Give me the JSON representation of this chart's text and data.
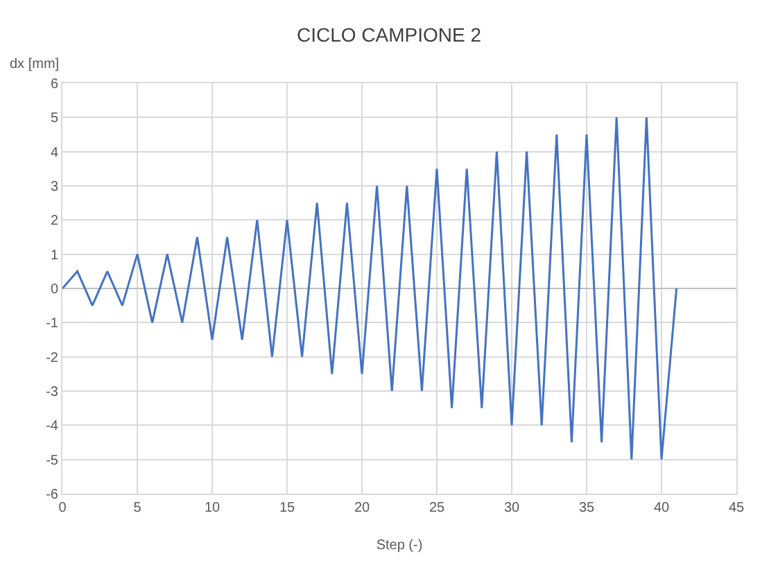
{
  "chart_data": {
    "type": "line",
    "title": "CICLO CAMPIONE 2",
    "xlabel": "Step (-)",
    "ylabel": "dx [mm]",
    "series": [
      {
        "color": "#4472c4",
        "x": [
          0,
          1,
          2,
          3,
          4,
          5,
          6,
          7,
          8,
          9,
          10,
          11,
          12,
          13,
          14,
          15,
          16,
          17,
          18,
          19,
          20,
          21,
          22,
          23,
          24,
          25,
          26,
          27,
          28,
          29,
          30,
          31,
          32,
          33,
          34,
          35,
          36,
          37,
          38,
          39,
          40,
          41
        ],
        "values": [
          0,
          0.5,
          -0.5,
          0.5,
          -0.5,
          1,
          -1,
          1,
          -1,
          1.5,
          -1.5,
          1.5,
          -1.5,
          2,
          -2,
          2,
          -2,
          2.5,
          -2.5,
          2.5,
          -2.5,
          3,
          -3,
          3,
          -3,
          3.5,
          -3.5,
          3.5,
          -3.5,
          4,
          -4,
          4,
          -4,
          4.5,
          -4.5,
          4.5,
          -4.5,
          5,
          -5,
          5,
          -5,
          0
        ]
      }
    ],
    "xlim": [
      0,
      45
    ],
    "xticks": [
      0,
      5,
      10,
      15,
      20,
      25,
      30,
      35,
      40,
      45
    ],
    "ylim": [
      -6,
      6
    ],
    "yticks": [
      -6,
      -5,
      -4,
      -3,
      -2,
      -1,
      0,
      1,
      2,
      3,
      4,
      5,
      6
    ],
    "grid": true,
    "marker": "none",
    "line_style": "solid"
  }
}
